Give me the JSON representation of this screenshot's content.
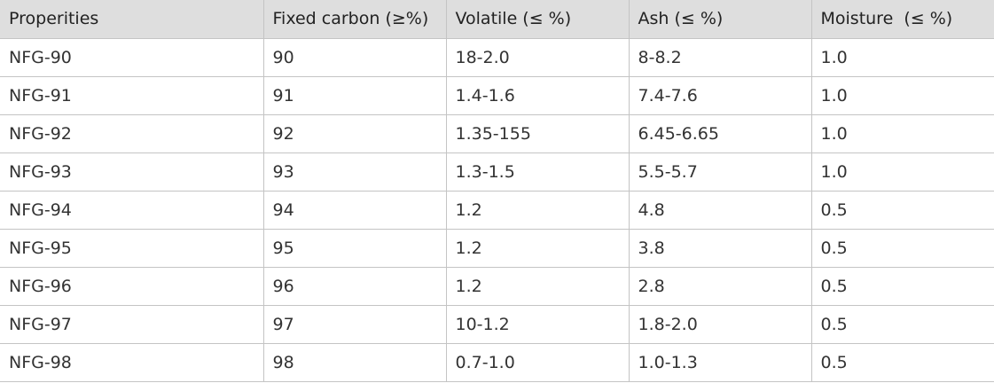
{
  "table": {
    "header": [
      "Properities",
      "Fixed carbon (≥%)",
      "Volatile (≤ %)",
      "Ash (≤ %)",
      "Moisture  (≤ %)"
    ],
    "rows": [
      [
        "NFG-90",
        "90",
        "18-2.0",
        "8-8.2",
        "1.0"
      ],
      [
        "NFG-91",
        "91",
        "1.4-1.6",
        "7.4-7.6",
        "1.0"
      ],
      [
        "NFG-92",
        "92",
        "1.35-155",
        "6.45-6.65",
        "1.0"
      ],
      [
        "NFG-93",
        "93",
        "1.3-1.5",
        "5.5-5.7",
        "1.0"
      ],
      [
        "NFG-94",
        "94",
        "1.2",
        "4.8",
        "0.5"
      ],
      [
        "NFG-95",
        "95",
        "1.2",
        "3.8",
        "0.5"
      ],
      [
        "NFG-96",
        "96",
        "1.2",
        "2.8",
        "0.5"
      ],
      [
        "NFG-97",
        "97",
        "10-1.2",
        "1.8-2.0",
        "0.5"
      ],
      [
        "NFG-98",
        "98",
        "0.7-1.0",
        "1.0-1.3",
        "0.5"
      ]
    ]
  }
}
